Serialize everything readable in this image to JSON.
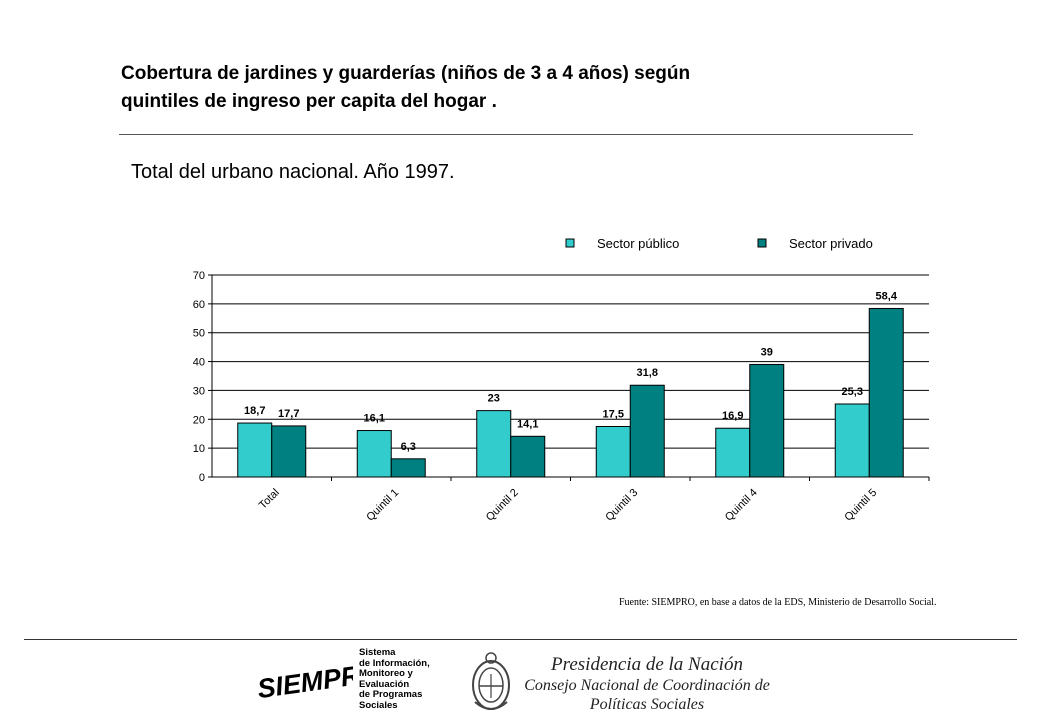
{
  "header": {
    "title_line1": "Cobertura de jardines y guarderías (niños de 3 a 4 años) según",
    "title_line2": "quintiles de ingreso per capita del hogar .",
    "subtitle": "Total del urbano nacional. Año 1997."
  },
  "chart_data": {
    "type": "bar",
    "categories": [
      "Total",
      "Quintil 1",
      "Quintil 2",
      "Quintil 3",
      "Quintil 4",
      "Quintil 5"
    ],
    "series": [
      {
        "name": "Sector público",
        "values": [
          18.7,
          16.1,
          23,
          17.5,
          16.9,
          25.3
        ],
        "labels": [
          "18,7",
          "16,1",
          "23",
          "17,5",
          "16,9",
          "25,3"
        ],
        "color": "#33cccc"
      },
      {
        "name": "Sector privado",
        "values": [
          17.7,
          6.3,
          14.1,
          31.8,
          39,
          58.4
        ],
        "labels": [
          "17,7",
          "6,3",
          "14,1",
          "31,8",
          "39",
          "58,4"
        ],
        "color": "#008080"
      }
    ],
    "ylim": [
      0,
      70
    ],
    "yticks": [
      0,
      10,
      20,
      30,
      40,
      50,
      60,
      70
    ],
    "grid": true,
    "legend": "top",
    "title": "",
    "xlabel": "",
    "ylabel": ""
  },
  "footer": {
    "source": "Fuente: SIEMPRO,  en base a datos de la EDS, Ministerio de Desarrollo Social.",
    "siempro_logo_text": "SIEMPRO",
    "siempro_lines": [
      "Sistema",
      "de Información,",
      "Monitoreo y",
      "Evaluación",
      "de Programas",
      "Sociales"
    ],
    "presidencia_line1": "Presidencia de la Nación",
    "presidencia_line2": "Consejo Nacional de Coordinación de",
    "presidencia_line3": "Políticas Sociales"
  }
}
